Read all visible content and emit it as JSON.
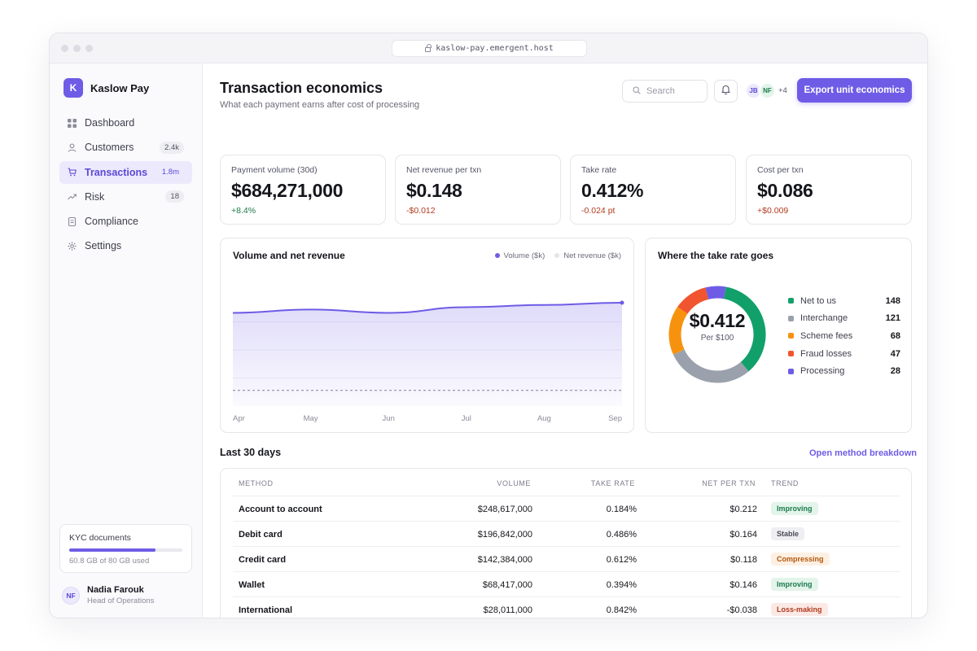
{
  "browser": {
    "url": "kaslow-pay.emergent.host"
  },
  "brand": {
    "logo_letter": "K",
    "name": "Kaslow Pay",
    "accent": "#6e5ce6"
  },
  "sidebar": {
    "items": [
      {
        "label": "Dashboard",
        "icon": "grid-icon",
        "badge": ""
      },
      {
        "label": "Customers",
        "icon": "user-icon",
        "badge": "2.4k"
      },
      {
        "label": "Transactions",
        "icon": "cart-icon",
        "badge": "1.8m",
        "active": true
      },
      {
        "label": "Risk",
        "icon": "trend-icon",
        "badge": "18"
      },
      {
        "label": "Compliance",
        "icon": "document-icon",
        "badge": ""
      },
      {
        "label": "Settings",
        "icon": "gear-icon",
        "badge": ""
      }
    ],
    "storage": {
      "title": "KYC documents",
      "text": "60.8 GB of 80 GB used",
      "fraction": 0.76
    },
    "user": {
      "initials": "NF",
      "name": "Nadia Farouk",
      "role": "Head of Operations"
    }
  },
  "header": {
    "title": "Transaction economics",
    "subtitle": "What each payment earns after cost of processing",
    "search_placeholder": "Search",
    "avatars": [
      "JB",
      "NF"
    ],
    "avatars_more": "+4",
    "export_label": "Export unit economics"
  },
  "kpis": [
    {
      "label": "Payment volume (30d)",
      "value": "$684,271,000",
      "delta": "+8.4%",
      "trend": "up"
    },
    {
      "label": "Net revenue per txn",
      "value": "$0.148",
      "delta": "-$0.012",
      "trend": "down"
    },
    {
      "label": "Take rate",
      "value": "0.412%",
      "delta": "-0.024 pt",
      "trend": "down"
    },
    {
      "label": "Cost per txn",
      "value": "$0.086",
      "delta": "+$0.009",
      "trend": "down"
    }
  ],
  "chart_data": [
    {
      "type": "area",
      "title": "Volume and net revenue",
      "x": [
        "Apr",
        "May",
        "Jun",
        "Jul",
        "Aug",
        "Sep"
      ],
      "series": [
        {
          "name": "Volume ($k)",
          "color": "#6e5ce6",
          "values": [
            0.83,
            0.86,
            0.83,
            0.88,
            0.9,
            0.92
          ]
        },
        {
          "name": "Net revenue ($k)",
          "color": "#c8c8d2",
          "values": [
            0.14,
            0.14,
            0.14,
            0.14,
            0.14,
            0.14
          ]
        }
      ],
      "grid": true,
      "legend": "top-right"
    },
    {
      "type": "pie",
      "title": "Where the take rate goes",
      "center_value": "$0.412",
      "center_label": "Per $100",
      "slices": [
        {
          "label": "Net to us",
          "value": 148,
          "color": "#12a06a"
        },
        {
          "label": "Interchange",
          "value": 121,
          "color": "#9aa1ad"
        },
        {
          "label": "Scheme fees",
          "value": 68,
          "color": "#f7920f"
        },
        {
          "label": "Fraud losses",
          "value": 47,
          "color": "#f0552f"
        },
        {
          "label": "Processing",
          "value": 28,
          "color": "#6e5ce6"
        }
      ],
      "legend": "right"
    }
  ],
  "table": {
    "section_title": "Last 30 days",
    "link_label": "Open method breakdown",
    "headers": [
      "Method",
      "Volume",
      "Take rate",
      "Net per txn",
      "Trend"
    ],
    "rows": [
      {
        "method": "Account to account",
        "volume": "$248,617,000",
        "take_rate": "0.184%",
        "net": "$0.212",
        "trend": "Improving",
        "trend_kind": "improving"
      },
      {
        "method": "Debit card",
        "volume": "$196,842,000",
        "take_rate": "0.486%",
        "net": "$0.164",
        "trend": "Stable",
        "trend_kind": "stable"
      },
      {
        "method": "Credit card",
        "volume": "$142,384,000",
        "take_rate": "0.612%",
        "net": "$0.118",
        "trend": "Compressing",
        "trend_kind": "compressing"
      },
      {
        "method": "Wallet",
        "volume": "$68,417,000",
        "take_rate": "0.394%",
        "net": "$0.146",
        "trend": "Improving",
        "trend_kind": "improving"
      },
      {
        "method": "International",
        "volume": "$28,011,000",
        "take_rate": "0.842%",
        "net": "-$0.038",
        "trend": "Loss-making",
        "trend_kind": "loss"
      }
    ]
  }
}
